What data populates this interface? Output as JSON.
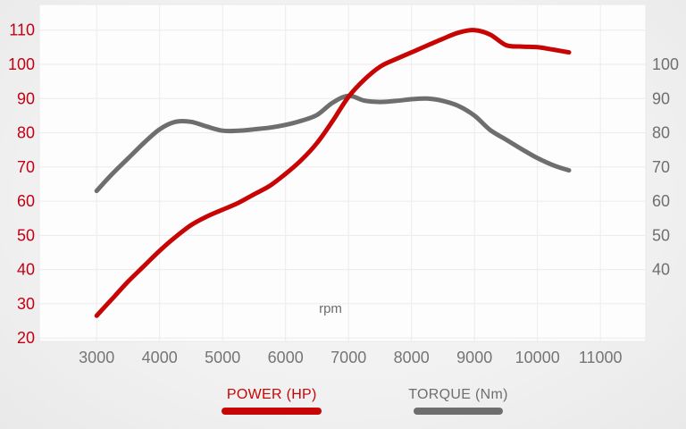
{
  "chart_data": {
    "type": "line",
    "title": "",
    "xlabel": "rpm",
    "ylabel": "",
    "grid": true,
    "legend_position": "bottom",
    "xlim": [
      2090,
      11720
    ],
    "ylim": [
      19,
      117.5
    ],
    "x_ticks": [
      3000,
      4000,
      5000,
      6000,
      7000,
      8000,
      9000,
      10000,
      11000
    ],
    "left_axis": {
      "ticks": [
        110,
        100,
        90,
        80,
        70,
        60,
        50,
        40,
        30,
        20
      ],
      "color": "#c10015"
    },
    "right_axis": {
      "ticks": [
        100,
        90,
        80,
        70,
        60,
        50,
        40
      ],
      "color": "#6f6f6f"
    },
    "x_tick_color": "#757575",
    "gridline_color": "#ececec",
    "plot_background": "#fdfdfd",
    "series": [
      {
        "name": "POWER (HP)",
        "color": "#c70505",
        "x": [
          3000,
          3250,
          3500,
          3750,
          4000,
          4250,
          4500,
          4750,
          5000,
          5250,
          5500,
          5750,
          6000,
          6250,
          6500,
          6750,
          7000,
          7250,
          7500,
          7750,
          8000,
          8250,
          8500,
          8750,
          9000,
          9250,
          9500,
          9750,
          10000,
          10250,
          10500
        ],
        "values": [
          26.5,
          31.5,
          36.5,
          41,
          45.5,
          49.5,
          53,
          55.5,
          57.5,
          59.5,
          62,
          64.5,
          68,
          72,
          77,
          83.5,
          90.5,
          95.5,
          99.3,
          101.5,
          103.5,
          105.5,
          107.5,
          109.3,
          110,
          108.7,
          105.6,
          105.2,
          105,
          104.3,
          103.5
        ]
      },
      {
        "name": "TORQUE (Nm)",
        "color": "#6e6e6e",
        "x": [
          3000,
          3250,
          3500,
          3750,
          4000,
          4250,
          4500,
          4750,
          5000,
          5250,
          5500,
          5750,
          6000,
          6250,
          6500,
          6750,
          7000,
          7250,
          7500,
          7750,
          8000,
          8250,
          8500,
          8750,
          9000,
          9250,
          9500,
          9750,
          10000,
          10250,
          10500
        ],
        "values": [
          63,
          68,
          72.5,
          77,
          81,
          83.2,
          83.2,
          81.8,
          80.6,
          80.6,
          81,
          81.5,
          82.3,
          83.5,
          85.2,
          88.8,
          90.8,
          89.4,
          89,
          89.3,
          89.8,
          90,
          89.3,
          87.8,
          85,
          80.8,
          78,
          75.2,
          72.6,
          70.5,
          69
        ]
      }
    ]
  }
}
